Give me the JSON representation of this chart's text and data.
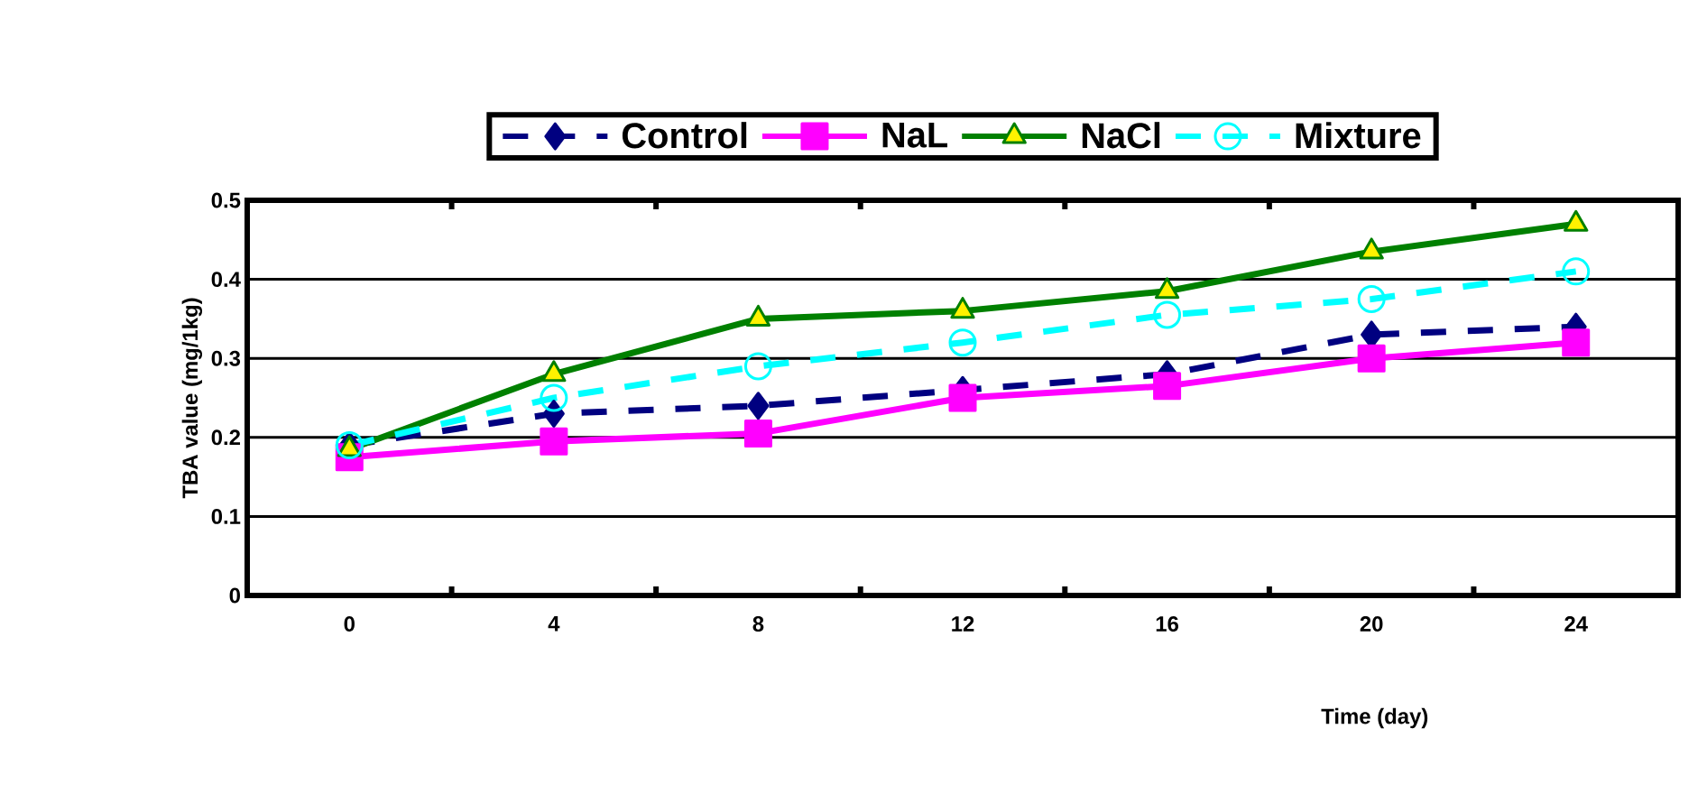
{
  "chart_data": {
    "type": "line",
    "xlabel": "Time (day)",
    "ylabel": "TBA value (mg/1kg)",
    "categories": [
      "0",
      "4",
      "8",
      "12",
      "16",
      "20",
      "24"
    ],
    "ylim": [
      0,
      0.5
    ],
    "yticks": [
      0,
      0.1,
      0.2,
      0.3,
      0.4,
      0.5
    ],
    "grid": "y",
    "legend": "top",
    "series": [
      {
        "name": "Control",
        "color": "#000080",
        "marker": "diamond",
        "line_style": "dashed",
        "values": [
          0.19,
          0.23,
          0.24,
          0.26,
          0.28,
          0.33,
          0.34
        ]
      },
      {
        "name": "NaL",
        "color": "#ff00ff",
        "marker": "square",
        "line_style": "solid",
        "values": [
          0.175,
          0.195,
          0.205,
          0.25,
          0.265,
          0.3,
          0.32
        ]
      },
      {
        "name": "NaCl",
        "color": "#008000",
        "marker": "triangle",
        "line_style": "solid",
        "values": [
          0.185,
          0.28,
          0.35,
          0.36,
          0.385,
          0.435,
          0.47
        ]
      },
      {
        "name": "Mixture",
        "color": "#00ffff",
        "marker": "circle",
        "line_style": "dashed",
        "values": [
          0.19,
          0.25,
          0.29,
          0.32,
          0.355,
          0.375,
          0.41
        ]
      }
    ]
  }
}
